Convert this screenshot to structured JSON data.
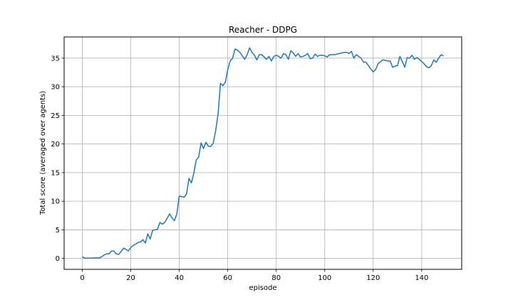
{
  "chart_data": {
    "type": "line",
    "title": "Reacher - DDPG",
    "xlabel": "episode",
    "ylabel": "Total score (averaged over agents)",
    "xlim": [
      -7.5,
      156.5
    ],
    "ylim": [
      -1.9,
      38.7
    ],
    "xticks": [
      0,
      20,
      40,
      60,
      80,
      100,
      120,
      140
    ],
    "yticks": [
      0,
      5,
      10,
      15,
      20,
      25,
      30,
      35
    ],
    "grid": true,
    "line_color": "#1f77b4",
    "series": [
      {
        "x": [
          0,
          1,
          2,
          3,
          4,
          5,
          6,
          7,
          8,
          9,
          10,
          11,
          12,
          13,
          14,
          15,
          16,
          17,
          18,
          19,
          20,
          21,
          22,
          23,
          24,
          25,
          26,
          27,
          28,
          29,
          30,
          31,
          32,
          33,
          34,
          35,
          36,
          37,
          38,
          39,
          40,
          41,
          42,
          43,
          44,
          45,
          46,
          47,
          48,
          49,
          50,
          51,
          52,
          53,
          54,
          55,
          56,
          57,
          58,
          59,
          60,
          61,
          62,
          63,
          64,
          65,
          66,
          67,
          68,
          69,
          70,
          71,
          72,
          73,
          74,
          75,
          76,
          77,
          78,
          79,
          80,
          81,
          82,
          83,
          84,
          85,
          86,
          87,
          88,
          89,
          90,
          91,
          92,
          93,
          94,
          95,
          96,
          97,
          98,
          99,
          100,
          101,
          102,
          103,
          104,
          105,
          106,
          107,
          108,
          109,
          110,
          111,
          112,
          113,
          114,
          115,
          116,
          117,
          118,
          119,
          120,
          121,
          122,
          123,
          124,
          125,
          126,
          127,
          128,
          129,
          130,
          131,
          132,
          133,
          134,
          135,
          136,
          137,
          138,
          139,
          140,
          141,
          142,
          143,
          144,
          145,
          146,
          147,
          148,
          149
        ],
        "values": [
          0.3,
          0.05,
          0.05,
          0.05,
          0.05,
          0.1,
          0.1,
          0.1,
          0.3,
          0.6,
          0.8,
          0.8,
          1.3,
          1.3,
          0.8,
          0.7,
          1.2,
          1.8,
          1.6,
          1.3,
          1.9,
          2.3,
          2.5,
          2.8,
          2.9,
          3.3,
          2.7,
          4.3,
          3.4,
          4.9,
          5.0,
          5.1,
          6.3,
          6.0,
          6.3,
          7.0,
          7.8,
          7.1,
          6.6,
          7.8,
          10.9,
          10.8,
          10.7,
          11.3,
          14.0,
          13.2,
          14.9,
          17.2,
          17.7,
          20.2,
          19.2,
          20.3,
          19.6,
          19.6,
          20.1,
          22.3,
          25.2,
          30.6,
          30.2,
          30.8,
          33.0,
          34.5,
          35.0,
          36.6,
          36.4,
          36.0,
          35.4,
          34.8,
          35.6,
          36.8,
          36.0,
          35.5,
          34.7,
          35.6,
          35.6,
          35.2,
          34.8,
          35.3,
          34.5,
          35.3,
          35.5,
          35.3,
          35.0,
          35.8,
          35.6,
          34.8,
          36.3,
          35.9,
          35.3,
          35.8,
          35.2,
          35.3,
          35.5,
          35.8,
          34.9,
          35.0,
          35.7,
          35.3,
          35.5,
          35.5,
          35.4,
          35.2,
          35.6,
          35.6,
          35.6,
          35.7,
          35.8,
          35.9,
          36.0,
          36.0,
          35.8,
          36.2,
          35.0,
          35.6,
          35.3,
          35.0,
          34.3,
          34.3,
          33.7,
          33.1,
          32.6,
          33.0,
          34.0,
          34.4,
          34.7,
          34.6,
          34.5,
          34.5,
          33.4,
          33.6,
          33.7,
          35.3,
          34.4,
          33.4,
          35.1,
          35.0,
          35.5,
          34.8,
          35.1,
          34.8,
          34.4,
          34.0,
          33.5,
          33.3,
          33.7,
          34.7,
          34.3,
          35.0,
          35.6,
          35.4
        ]
      }
    ]
  }
}
